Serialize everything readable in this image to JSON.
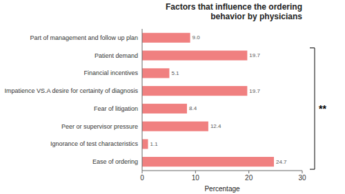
{
  "chart_data": {
    "type": "bar",
    "orientation": "horizontal",
    "title": "Factors that influence the ordering\nbehavior by physicians",
    "categories": [
      "Part of management and follow up plan",
      "Patient demand",
      "Financial incentives",
      "Impatience VS.A desire for certainty of diagnosis",
      "Fear of litigation",
      "Peer or supervisor pressure",
      "Ignorance of test characteristics",
      "Ease of ordering"
    ],
    "values": [
      9.0,
      19.7,
      5.1,
      19.7,
      8.4,
      12.4,
      1.1,
      24.7
    ],
    "value_labels": [
      "9.0",
      "19.7",
      "5.1",
      "19.7",
      "8.4",
      "12.4",
      "1.1",
      "24.7"
    ],
    "data_labels": true,
    "color": "#F08080",
    "xlabel": "Percentage",
    "xlim": [
      0,
      30
    ],
    "xticks": [
      0,
      10,
      20,
      30
    ],
    "annotation": "**"
  }
}
